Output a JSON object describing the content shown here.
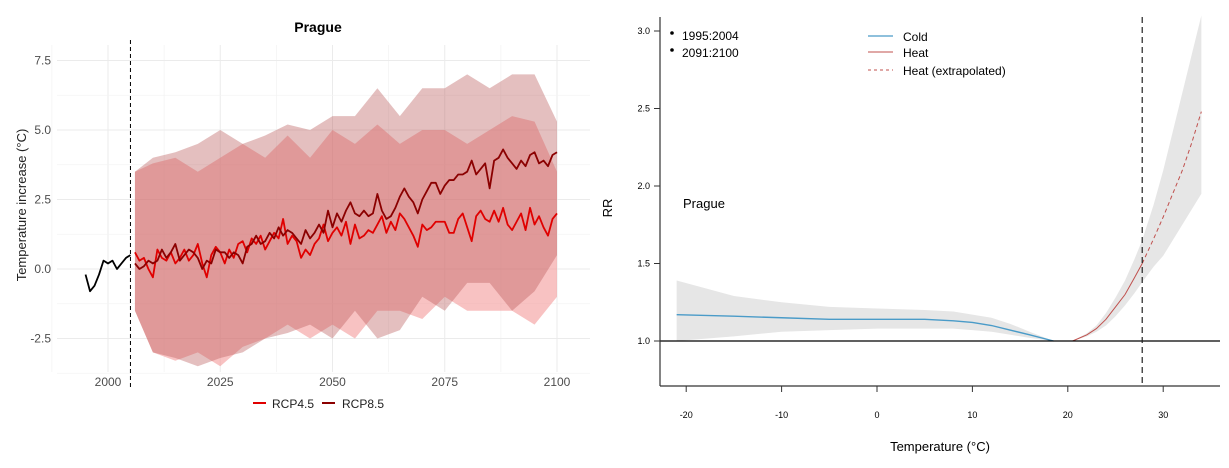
{
  "chart_data": [
    {
      "type": "line",
      "title": "Prague",
      "xlabel": "",
      "ylabel": "Temperature increase (°C)",
      "xlim": [
        1993,
        2103
      ],
      "ylim": [
        -3.75,
        8.3
      ],
      "x_ticks": [
        "2000",
        "2025",
        "2050",
        "2075",
        "2100"
      ],
      "y_ticks": [
        "7.5",
        "5.0",
        "2.5",
        "0.0",
        "-2.5"
      ],
      "grid": true,
      "legend_position": "bottom",
      "reference_line_x": 2005,
      "colors": {
        "historical": "#000000",
        "rcp45": "#e00000",
        "rcp85": "#8b0000",
        "band45": "#f39090",
        "band85": "#b85858"
      },
      "historical": {
        "x_start": 1995,
        "values": [
          -0.2,
          -0.8,
          -0.6,
          -0.2,
          0.3,
          0.2,
          0.3,
          0.0,
          0.2,
          0.4,
          0.5
        ]
      },
      "series": [
        {
          "name": "RCP4.5",
          "x_start": 2006,
          "values": [
            0.6,
            0.3,
            0.4,
            0.0,
            -0.3,
            0.7,
            0.4,
            0.3,
            0.6,
            0.2,
            0.4,
            0.7,
            0.3,
            0.5,
            0.9,
            0.2,
            -0.3,
            0.5,
            0.8,
            0.6,
            0.2,
            0.7,
            0.4,
            0.9,
            1.0,
            0.6,
            1.1,
            0.9,
            1.2,
            0.7,
            1.0,
            1.3,
            1.1,
            1.8,
            0.9,
            1.2,
            1.0,
            0.4,
            0.7,
            0.5,
            0.9,
            1.1,
            1.6,
            1.0,
            1.3,
            1.5,
            1.2,
            1.7,
            0.9,
            1.6,
            1.1,
            1.2,
            1.4,
            1.3,
            1.6,
            1.9,
            1.3,
            1.7,
            1.4,
            2.0,
            1.8,
            1.5,
            1.2,
            0.8,
            1.6,
            1.4,
            1.5,
            1.7,
            1.7,
            1.7,
            1.3,
            1.3,
            1.8,
            2.0,
            1.5,
            1.0,
            1.9,
            2.1,
            1.8,
            1.7,
            2.1,
            1.7,
            2.2,
            1.6,
            1.4,
            1.7,
            2.0,
            1.4,
            2.2,
            1.6,
            1.9,
            1.5,
            1.2,
            1.8,
            2.0
          ],
          "band_years": [
            2006,
            2010,
            2015,
            2020,
            2025,
            2030,
            2035,
            2040,
            2045,
            2050,
            2055,
            2060,
            2065,
            2070,
            2075,
            2080,
            2085,
            2090,
            2095,
            2100
          ],
          "band_low": [
            -1.5,
            -3.0,
            -3.3,
            -3.0,
            -3.5,
            -2.8,
            -2.5,
            -2.0,
            -2.5,
            -2.0,
            -2.5,
            -1.5,
            -1.5,
            -1.8,
            -1.0,
            -1.5,
            -1.5,
            -1.5,
            -2.0,
            -1.0
          ],
          "band_high": [
            3.5,
            3.8,
            4.0,
            3.5,
            4.0,
            4.5,
            4.0,
            4.8,
            4.0,
            5.0,
            4.5,
            5.2,
            4.5,
            5.0,
            5.0,
            4.5,
            5.0,
            5.5,
            5.3,
            3.5
          ]
        },
        {
          "name": "RCP8.5",
          "x_start": 2006,
          "values": [
            0.2,
            0.0,
            0.1,
            0.3,
            0.2,
            0.3,
            0.7,
            0.4,
            0.6,
            0.9,
            0.3,
            0.5,
            0.7,
            0.6,
            0.4,
            0.0,
            0.3,
            0.2,
            0.7,
            0.6,
            0.6,
            0.4,
            0.6,
            0.5,
            0.2,
            0.8,
            0.9,
            1.2,
            0.9,
            1.0,
            1.3,
            1.1,
            1.5,
            1.2,
            1.4,
            1.3,
            1.1,
            0.9,
            1.4,
            1.1,
            1.3,
            1.6,
            1.3,
            2.1,
            1.5,
            2.0,
            1.7,
            2.1,
            2.4,
            2.0,
            1.9,
            2.1,
            1.9,
            2.0,
            2.7,
            2.1,
            1.8,
            1.9,
            2.2,
            2.6,
            2.9,
            2.6,
            2.4,
            2.0,
            2.5,
            2.8,
            3.1,
            3.1,
            2.7,
            3.0,
            3.2,
            3.2,
            3.4,
            3.4,
            3.5,
            3.9,
            3.4,
            3.6,
            3.8,
            2.9,
            3.9,
            4.0,
            4.3,
            4.0,
            3.8,
            3.6,
            3.9,
            3.7,
            4.1,
            4.2,
            3.8,
            3.9,
            3.7,
            4.1,
            4.2
          ],
          "band_years": [
            2006,
            2010,
            2015,
            2020,
            2025,
            2030,
            2035,
            2040,
            2045,
            2050,
            2055,
            2060,
            2065,
            2070,
            2075,
            2080,
            2085,
            2090,
            2095,
            2100
          ],
          "band_low": [
            -1.5,
            -3.0,
            -3.2,
            -3.5,
            -3.2,
            -3.0,
            -2.5,
            -2.3,
            -2.0,
            -2.5,
            -1.5,
            -2.5,
            -2.2,
            -1.0,
            -1.5,
            -0.5,
            -0.5,
            -1.5,
            -0.8,
            0.5
          ],
          "band_high": [
            3.5,
            4.0,
            4.2,
            4.5,
            5.0,
            4.5,
            4.8,
            5.2,
            5.0,
            5.5,
            5.5,
            6.5,
            5.5,
            6.5,
            6.5,
            7.0,
            6.5,
            7.0,
            7.0,
            5.3
          ]
        }
      ]
    },
    {
      "type": "line",
      "title": "",
      "annotation": "Prague",
      "xlabel": "Temperature (°C)",
      "ylabel": "RR",
      "xlim": [
        -23,
        36
      ],
      "ylim": [
        0.71,
        3.1
      ],
      "x_ticks": [
        "-20",
        "-10",
        "0",
        "10",
        "20",
        "30"
      ],
      "y_ticks": [
        "1.0",
        "1.5",
        "2.0",
        "2.5",
        "3.0"
      ],
      "grid": false,
      "reference_line_x": 27.8,
      "reference_line_y": 1.0,
      "period_legend": [
        "1995:2004",
        "2091:2100"
      ],
      "legend_position": "top-center",
      "colors": {
        "cold": "#4a9bc8",
        "heat": "#c0504d",
        "ci": "#e6e6e6"
      },
      "series": [
        {
          "name": "Cold",
          "style": "solid",
          "x": [
            -21,
            -15,
            -10,
            -5,
            0,
            5,
            8,
            10,
            12,
            14,
            16,
            18.5
          ],
          "y": [
            1.17,
            1.16,
            1.15,
            1.14,
            1.14,
            1.14,
            1.13,
            1.12,
            1.1,
            1.07,
            1.04,
            1.0
          ],
          "ci_low": [
            1.0,
            1.03,
            1.06,
            1.07,
            1.08,
            1.08,
            1.08,
            1.07,
            1.06,
            1.04,
            1.02,
            1.0
          ],
          "ci_high": [
            1.39,
            1.29,
            1.25,
            1.22,
            1.21,
            1.2,
            1.19,
            1.17,
            1.15,
            1.11,
            1.06,
            1.0
          ]
        },
        {
          "name": "Heat",
          "style": "solid",
          "x": [
            20.5,
            22,
            23,
            24,
            25,
            26,
            27,
            27.8
          ],
          "y": [
            1.0,
            1.04,
            1.08,
            1.14,
            1.22,
            1.3,
            1.41,
            1.5
          ],
          "ci_low": [
            1.0,
            1.03,
            1.06,
            1.1,
            1.16,
            1.23,
            1.31,
            1.38
          ],
          "ci_high": [
            1.0,
            1.05,
            1.1,
            1.18,
            1.28,
            1.39,
            1.53,
            1.65
          ]
        },
        {
          "name": "Heat (extrapolated)",
          "style": "dashed",
          "x": [
            27.8,
            29,
            30,
            31,
            32,
            33,
            34
          ],
          "y": [
            1.5,
            1.66,
            1.8,
            1.95,
            2.1,
            2.28,
            2.48
          ],
          "ci_low": [
            1.38,
            1.48,
            1.55,
            1.65,
            1.75,
            1.85,
            1.95
          ],
          "ci_high": [
            1.65,
            1.88,
            2.1,
            2.35,
            2.6,
            2.85,
            3.1
          ]
        }
      ]
    }
  ]
}
